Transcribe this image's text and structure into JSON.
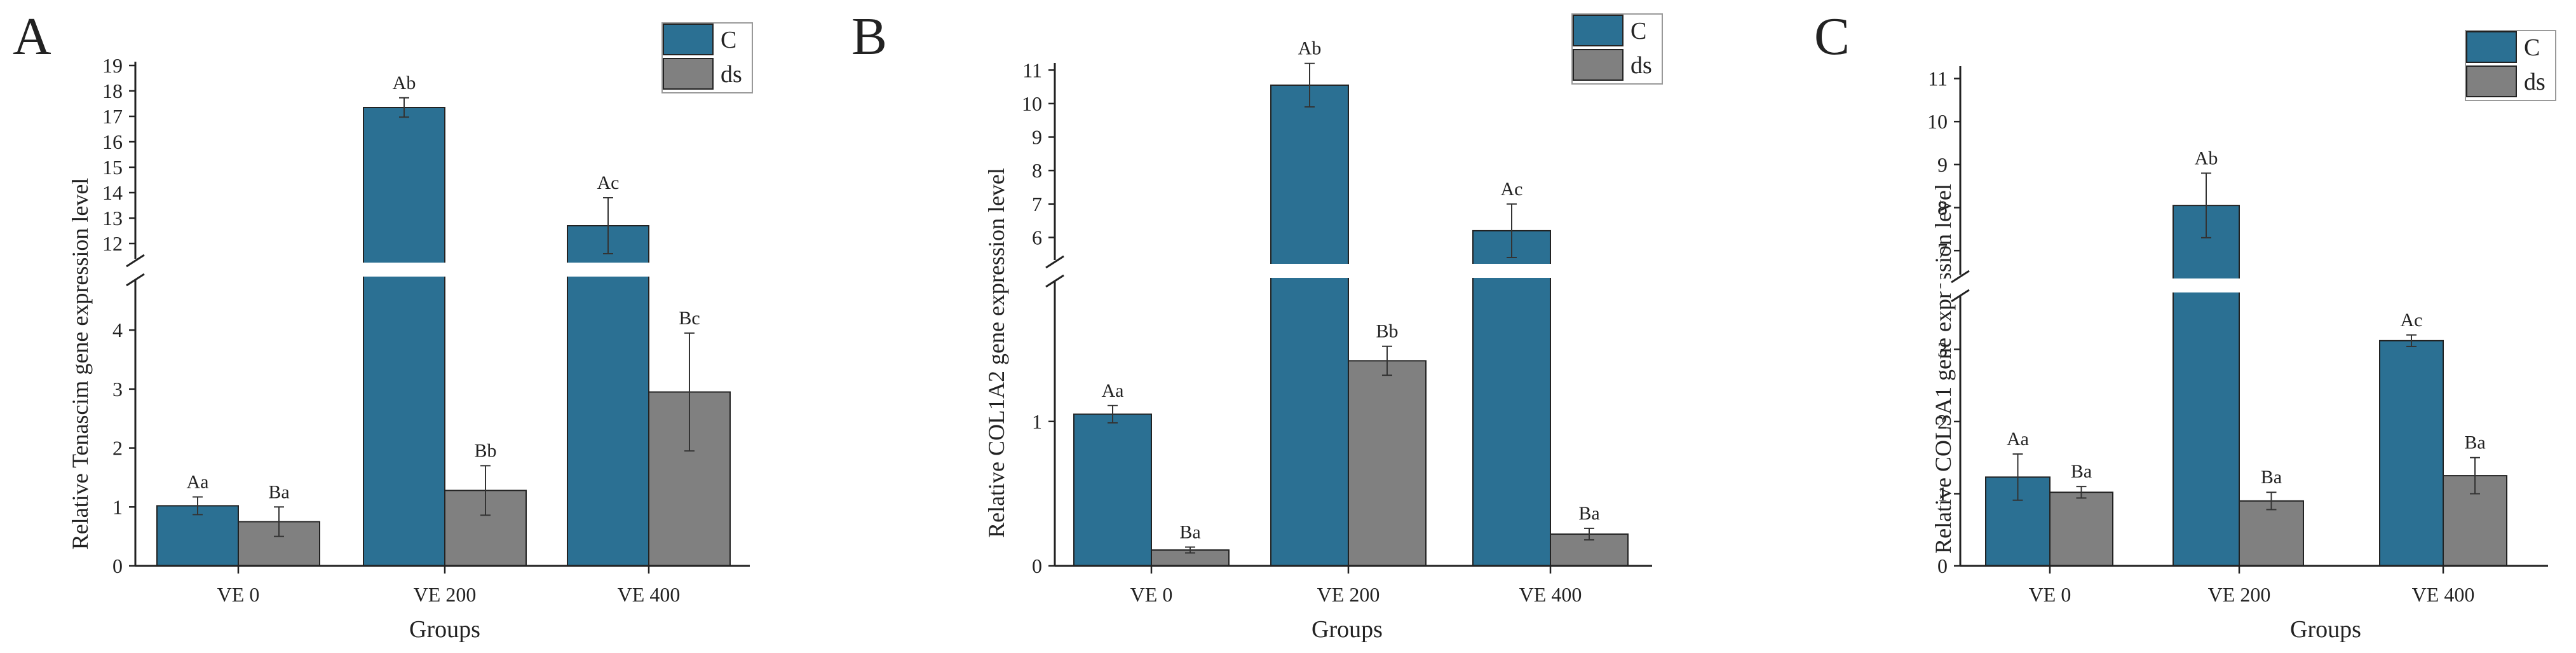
{
  "colors": {
    "C": "#2b7093",
    "ds": "#808080"
  },
  "chart_data": [
    {
      "type": "bar",
      "panel": "A",
      "xlabel": "Groups",
      "ylabel": "Relative Tenascim gene expression level",
      "categories": [
        "VE 0",
        "VE 200",
        "VE 400"
      ],
      "series": [
        {
          "name": "C",
          "values": [
            1.02,
            17.35,
            12.7
          ],
          "errors": [
            0.15,
            0.38,
            1.1
          ],
          "labels": [
            "Aa",
            "Ab",
            "Ac"
          ]
        },
        {
          "name": "ds",
          "values": [
            0.75,
            1.28,
            2.95
          ],
          "errors": [
            0.25,
            0.42,
            1.0
          ],
          "labels": [
            "Ba",
            "Bb",
            "Bc"
          ]
        }
      ],
      "axis_break": {
        "lower": [
          0,
          4.8
        ],
        "upper": [
          11.5,
          19
        ]
      },
      "yticks_lower": [
        "0",
        "1",
        "2",
        "3",
        "4"
      ],
      "yticks_upper": [
        "12",
        "13",
        "14",
        "15",
        "16",
        "17",
        "18",
        "19"
      ],
      "legend": [
        "C",
        "ds"
      ]
    },
    {
      "type": "bar",
      "panel": "B",
      "xlabel": "Groups",
      "ylabel": "Relative COL1A2 gene expression level",
      "categories": [
        "VE 0",
        "VE 200",
        "VE 400"
      ],
      "series": [
        {
          "name": "C",
          "values": [
            1.05,
            10.55,
            6.2
          ],
          "errors": [
            0.06,
            0.65,
            0.8
          ],
          "labels": [
            "Aa",
            "Ab",
            "Ac"
          ]
        },
        {
          "name": "ds",
          "values": [
            0.11,
            1.42,
            0.22
          ],
          "errors": [
            0.02,
            0.1,
            0.04
          ],
          "labels": [
            "Ba",
            "Bb",
            "Ba"
          ]
        }
      ],
      "axis_break": {
        "lower": [
          0,
          1.95
        ],
        "upper": [
          5.4,
          11.1
        ]
      },
      "yticks_lower": [
        "0",
        "1"
      ],
      "yticks_upper": [
        "6",
        "7",
        "8",
        "9",
        "10",
        "11"
      ],
      "legend": [
        "C",
        "ds"
      ]
    },
    {
      "type": "bar",
      "panel": "C",
      "xlabel": "Groups",
      "ylabel": "Relative COL3A1 gene expression level",
      "categories": [
        "VE 0",
        "VE 200",
        "VE 400"
      ],
      "series": [
        {
          "name": "C",
          "values": [
            1.23,
            8.05,
            3.12
          ],
          "errors": [
            0.32,
            0.75,
            0.08
          ],
          "labels": [
            "Aa",
            "Ab",
            "Ac"
          ]
        },
        {
          "name": "ds",
          "values": [
            1.02,
            0.9,
            1.25
          ],
          "errors": [
            0.08,
            0.12,
            0.25
          ],
          "labels": [
            "Ba",
            "Ba",
            "Ba"
          ]
        }
      ],
      "axis_break": {
        "lower": [
          0,
          3.7
        ],
        "upper": [
          6.5,
          11.2
        ]
      },
      "yticks_lower": [
        "0",
        "1",
        "2",
        "3"
      ],
      "yticks_upper": [
        "7",
        "8",
        "9",
        "10",
        "11"
      ],
      "legend": [
        "C",
        "ds"
      ]
    }
  ]
}
